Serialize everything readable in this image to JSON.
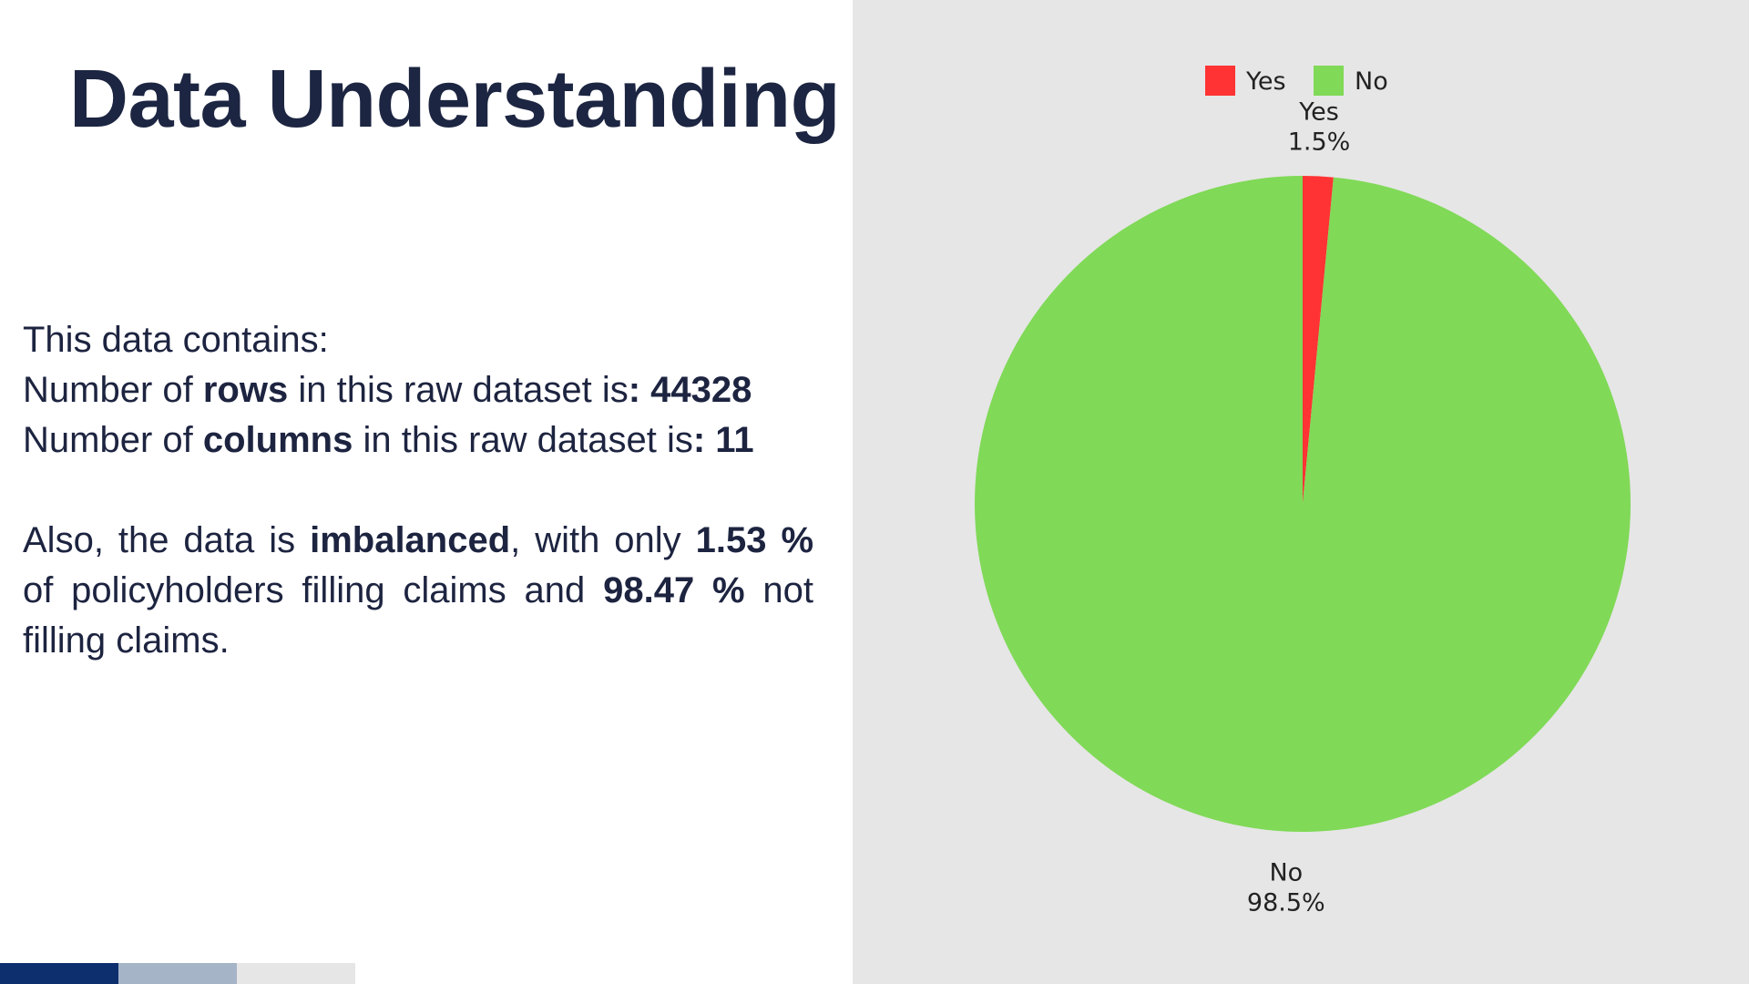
{
  "slide": {
    "title": "Data Understanding",
    "intro": "This data contains:",
    "rows_line": {
      "prefix": "Number of ",
      "keyword": "rows",
      "middle": " in this raw dataset is",
      "value": ": 44328"
    },
    "columns_line": {
      "prefix": "Number of ",
      "keyword": "columns",
      "middle": " in this raw dataset is",
      "value": ": 11"
    },
    "imbalance": {
      "t1": "Also, the data is ",
      "b1": "imbalanced",
      "t2": ", with only ",
      "b2": "1.53 %",
      "t3": " of policyholders filling claims and ",
      "b3": "98.47 %",
      "t4": " not filling claims."
    }
  },
  "footer_bar": {
    "colors": [
      "#0d2f6e",
      "#a6b4c8",
      "#e6e6e6"
    ]
  },
  "colors": {
    "panel_background": "#e6e6e6",
    "yes": "#ff3333",
    "no": "#80d957"
  },
  "chart_data": {
    "type": "pie",
    "title": "",
    "categories": [
      "Yes",
      "No"
    ],
    "values": [
      1.5,
      98.5
    ],
    "labels": [
      "1.5%",
      "98.5%"
    ],
    "legend": {
      "position": "top",
      "entries": [
        "Yes",
        "No"
      ]
    },
    "start_angle_deg": 0,
    "direction": "clockwise"
  }
}
